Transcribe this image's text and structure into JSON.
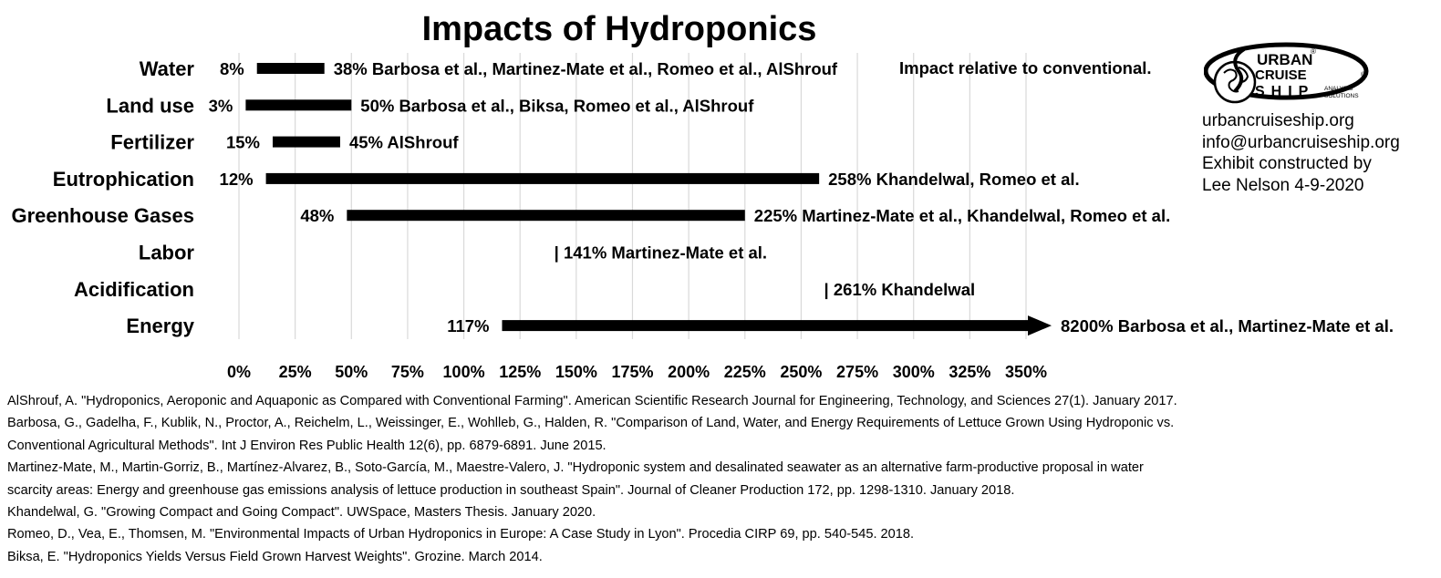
{
  "chart_data": {
    "type": "bar",
    "title": "Impacts of Hydroponics",
    "note": "Impact relative to conventional.",
    "xlim": [
      0,
      350
    ],
    "x_ticks": [
      "0%",
      "25%",
      "50%",
      "75%",
      "100%",
      "125%",
      "150%",
      "175%",
      "200%",
      "225%",
      "250%",
      "275%",
      "300%",
      "325%",
      "350%"
    ],
    "grid": true,
    "categories": [
      {
        "name": "Water",
        "low": 8,
        "high": 38,
        "low_label": "8%",
        "high_label": "38% Barbosa et al., Martinez-Mate et al., Romeo et al., AlShrouf"
      },
      {
        "name": "Land use",
        "low": 3,
        "high": 50,
        "low_label": "3%",
        "high_label": "50% Barbosa et al., Biksa, Romeo et al., AlShrouf"
      },
      {
        "name": "Fertilizer",
        "low": 15,
        "high": 45,
        "low_label": "15%",
        "high_label": "45% AlShrouf"
      },
      {
        "name": "Eutrophication",
        "low": 12,
        "high": 258,
        "low_label": "12%",
        "high_label": "258% Khandelwal, Romeo et al."
      },
      {
        "name": "Greenhouse Gases",
        "low": 48,
        "high": 225,
        "low_label": "48%",
        "high_label": "225% Martinez-Mate et al., Khandelwal, Romeo et al."
      },
      {
        "name": "Labor",
        "low": 141,
        "high": 141,
        "low_label": "",
        "high_label": "| 141% Martinez-Mate et al."
      },
      {
        "name": "Acidification",
        "low": 261,
        "high": 261,
        "low_label": "",
        "high_label": "| 261% Khandelwal"
      },
      {
        "name": "Energy",
        "low": 117,
        "high": 8200,
        "low_label": "117%",
        "high_label": "8200% Barbosa et al., Martinez-Mate et al.",
        "arrow": true
      }
    ]
  },
  "logo": {
    "urban": "URBAN",
    "cruise": "CRUISE",
    "ship": "SHIP",
    "analysis": "ANALYSIS",
    "solutions": "SOLUTIONS",
    "registered": "®",
    "copyright": "©"
  },
  "brand": {
    "website": "urbancruiseship.org",
    "email": "info@urbancruiseship.org",
    "credit_1": "Exhibit constructed by",
    "credit_2": "Lee Nelson 4-9-2020"
  },
  "references": [
    "AlShrouf, A. \"Hydroponics, Aeroponic and Aquaponic as Compared with Conventional Farming\". American Scientific Research Journal for Engineering, Technology, and Sciences 27(1). January 2017.",
    "Barbosa, G., Gadelha, F., Kublik, N., Proctor, A., Reichelm, L., Weissinger, E., Wohlleb, G., Halden, R. \"Comparison of Land, Water, and Energy Requirements of Lettuce Grown Using Hydroponic vs.",
    "Conventional Agricultural Methods\". Int J Environ Res Public Health 12(6), pp. 6879-6891. June 2015.",
    "Martinez-Mate, M., Martin-Gorriz, B., Martínez-Alvarez, B., Soto-García, M., Maestre-Valero, J. \"Hydroponic system and desalinated seawater as an alternative farm-productive proposal in water",
    "scarcity areas: Energy and greenhouse gas emissions analysis of lettuce production in southeast Spain\". Journal of Cleaner Production 172, pp. 1298-1310. January 2018.",
    "Khandelwal, G. \"Growing Compact and Going Compact\". UWSpace, Masters Thesis. January 2020.",
    "Romeo, D., Vea, E., Thomsen, M. \"Environmental Impacts of Urban Hydroponics in Europe: A Case Study in Lyon\". Procedia CIRP 69, pp. 540-545. 2018.",
    "Biksa, E. \"Hydroponics Yields Versus Field Grown Harvest Weights\". Grozine. March 2014."
  ]
}
